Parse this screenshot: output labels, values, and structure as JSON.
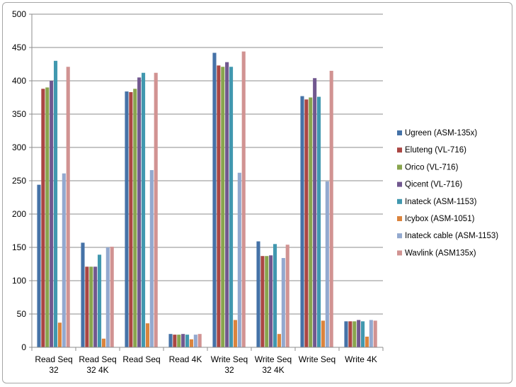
{
  "chart_data": {
    "type": "bar",
    "title": "",
    "xlabel": "",
    "ylabel": "",
    "ylim": [
      0,
      500
    ],
    "yticks": [
      0,
      50,
      100,
      150,
      200,
      250,
      300,
      350,
      400,
      450,
      500
    ],
    "grid": true,
    "legend_position": "right",
    "categories": [
      [
        "Read Seq",
        "32"
      ],
      [
        "Read Seq",
        "32 4K"
      ],
      [
        "Read Seq"
      ],
      [
        "Read 4K"
      ],
      [
        "Write Seq",
        "32"
      ],
      [
        "Write Seq",
        "32 4K"
      ],
      [
        "Write Seq"
      ],
      [
        "Write 4K"
      ]
    ],
    "series": [
      {
        "name": "Ugreen (ASM-135x)",
        "color": "#4572A7",
        "values": [
          244,
          157,
          384,
          20,
          442,
          159,
          377,
          39
        ]
      },
      {
        "name": "Eluteng (VL-716)",
        "color": "#AA4643",
        "values": [
          388,
          121,
          383,
          19,
          423,
          137,
          372,
          39
        ]
      },
      {
        "name": "Orico (VL-716)",
        "color": "#89A54E",
        "values": [
          390,
          121,
          388,
          19,
          421,
          137,
          375,
          39
        ]
      },
      {
        "name": "Qicent (VL-716)",
        "color": "#71588F",
        "values": [
          400,
          121,
          405,
          20,
          428,
          138,
          404,
          41
        ]
      },
      {
        "name": "Inateck (ASM-1153)",
        "color": "#4198AF",
        "values": [
          430,
          139,
          412,
          19,
          421,
          155,
          376,
          39
        ]
      },
      {
        "name": "Icybox (ASM-1051)",
        "color": "#DB843D",
        "values": [
          37,
          13,
          36,
          12,
          41,
          20,
          40,
          16
        ]
      },
      {
        "name": "Inateck cable (ASM-1153)",
        "color": "#93A9CF",
        "values": [
          261,
          150,
          266,
          19,
          262,
          134,
          249,
          41
        ]
      },
      {
        "name": "Wavlink (ASM135x)",
        "color": "#D19392",
        "values": [
          421,
          151,
          412,
          20,
          444,
          154,
          415,
          40
        ]
      }
    ]
  }
}
